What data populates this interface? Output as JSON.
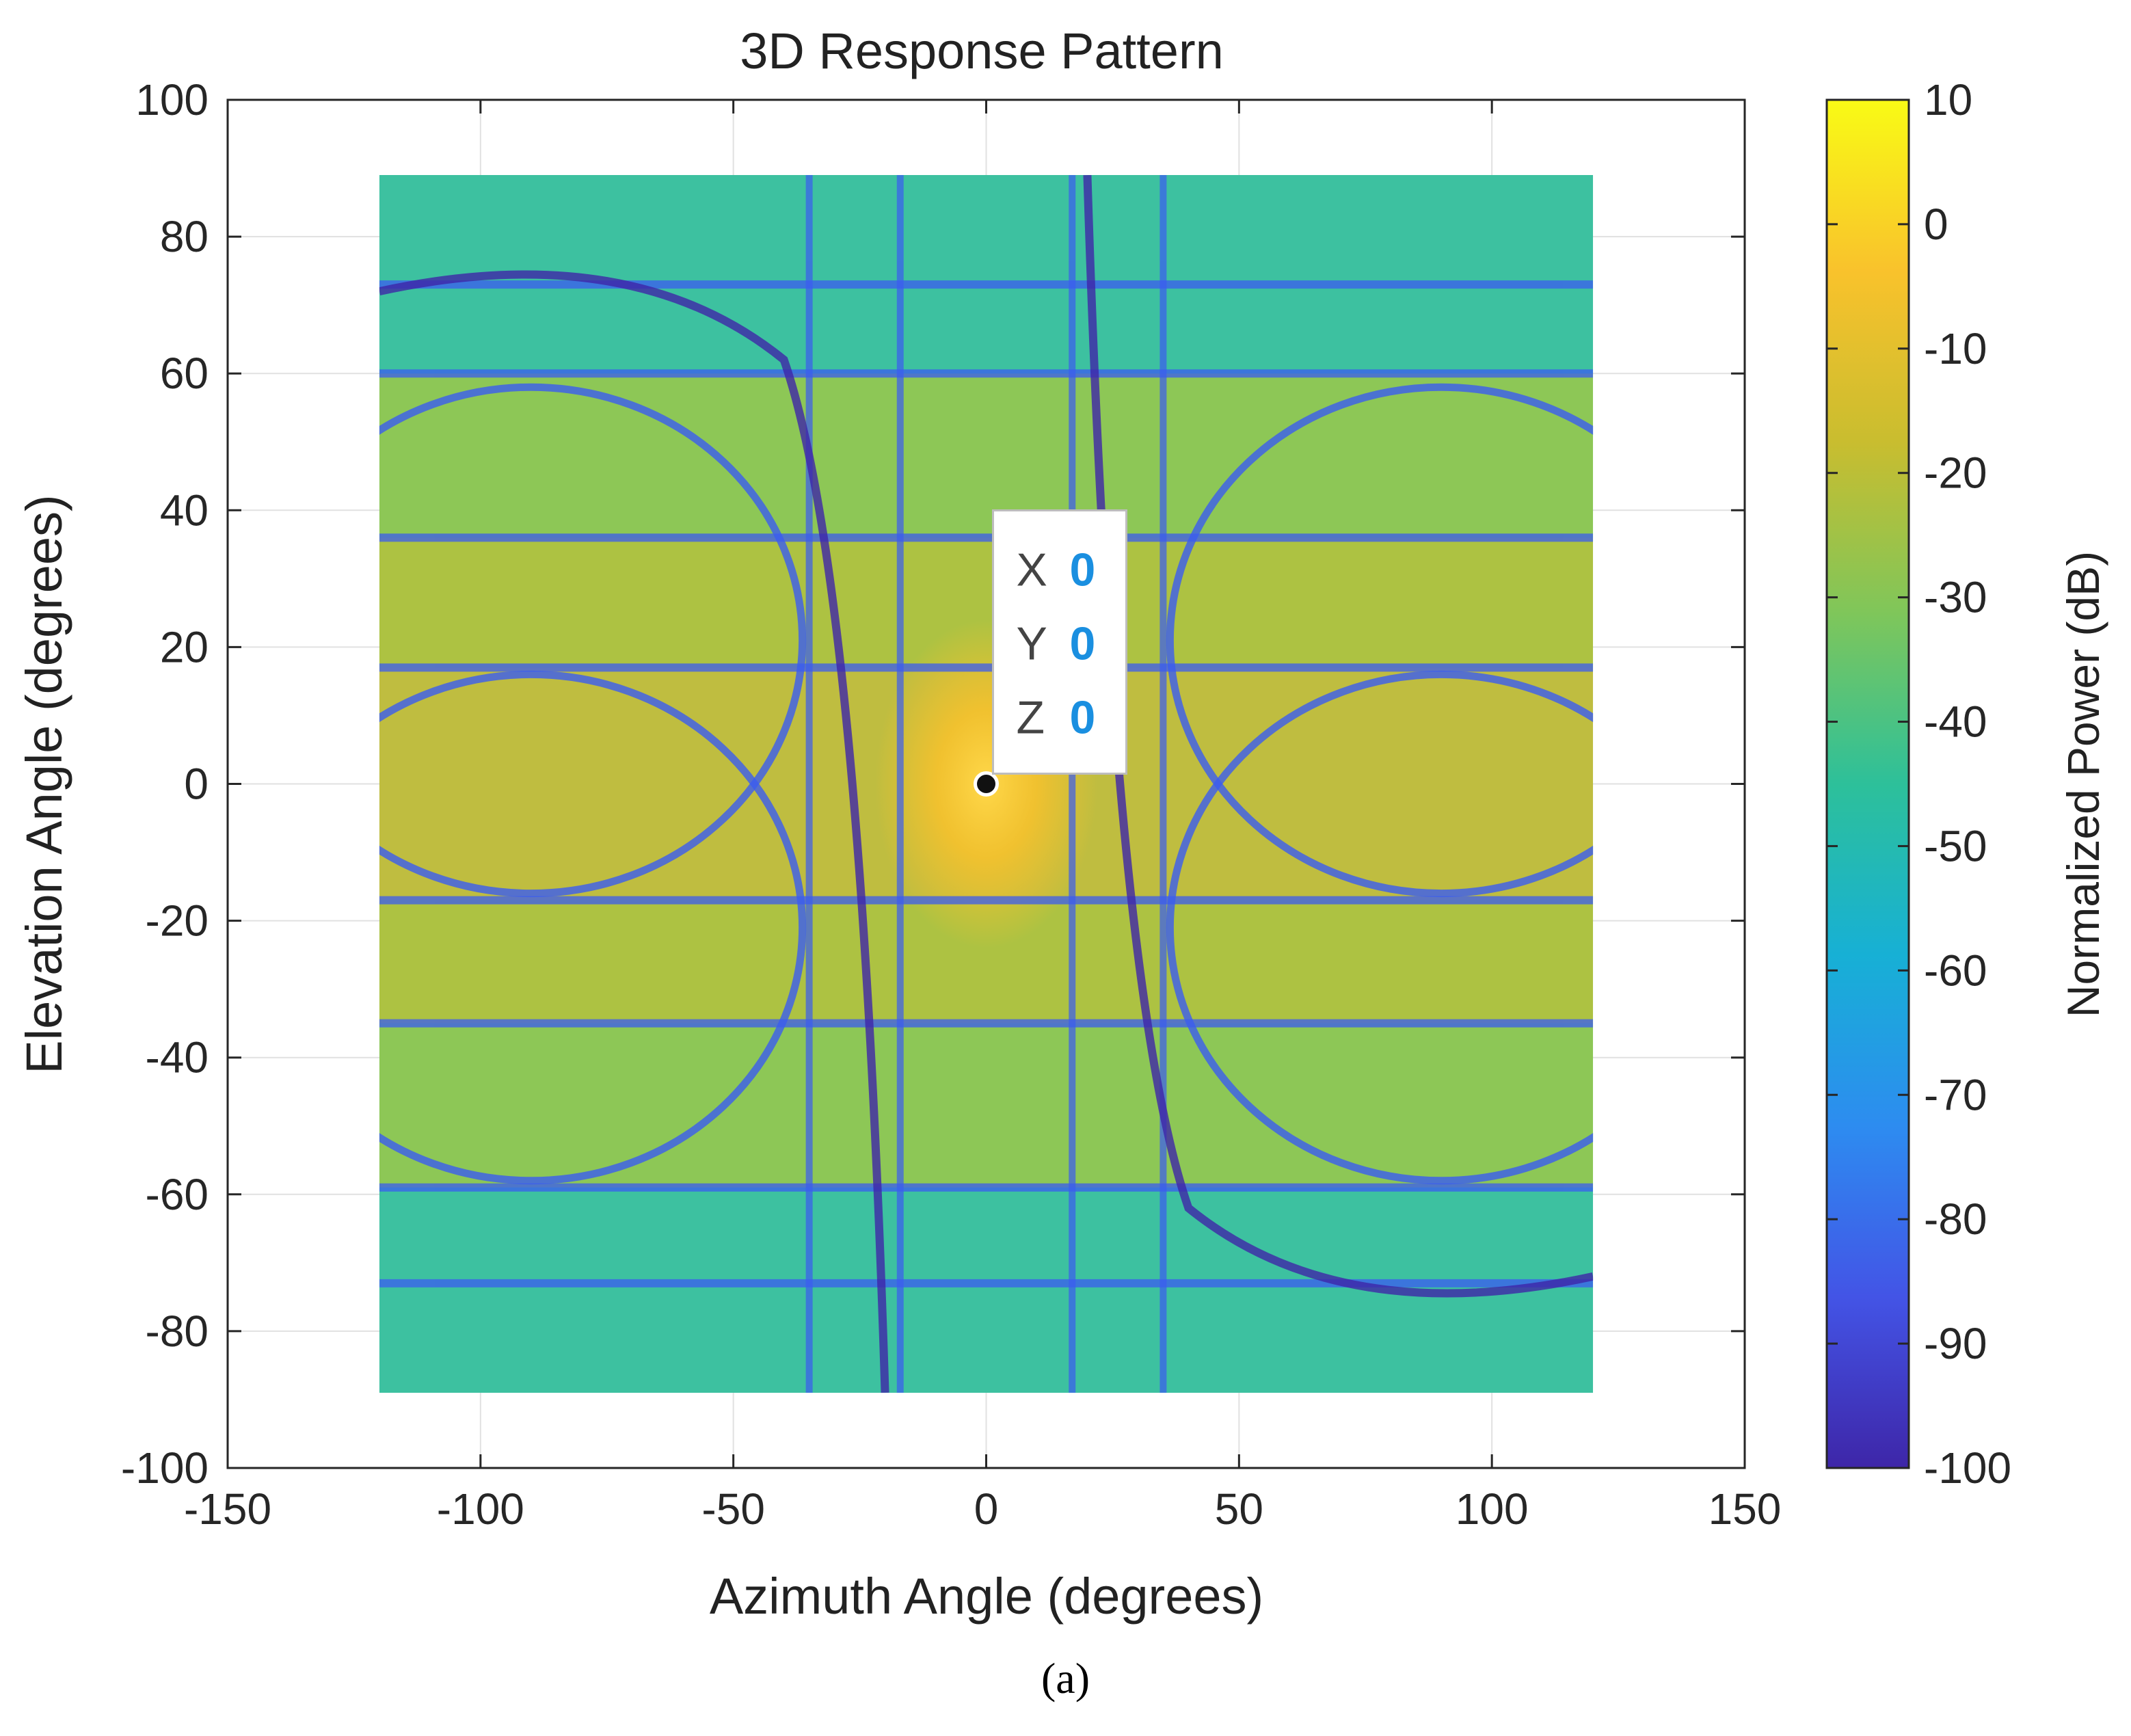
{
  "chart_data": {
    "type": "heatmap",
    "title": "3D Response Pattern",
    "xlabel": "Azimuth Angle (degrees)",
    "ylabel": "Elevation Angle (degrees)",
    "xlim": [
      -150,
      150
    ],
    "ylim": [
      -100,
      100
    ],
    "xticks": [
      -150,
      -100,
      -50,
      0,
      50,
      100,
      150
    ],
    "yticks": [
      -100,
      -80,
      -60,
      -40,
      -20,
      0,
      20,
      40,
      60,
      80,
      100
    ],
    "data_extent": {
      "azimuth": [
        -120,
        120
      ],
      "elevation": [
        -89,
        89
      ]
    },
    "grid": true,
    "colorbar": {
      "label": "Normalized Power (dB)",
      "range": [
        -100,
        10
      ],
      "ticks": [
        10,
        0,
        -10,
        -20,
        -30,
        -40,
        -50,
        -60,
        -70,
        -80,
        -90,
        -100
      ],
      "colormap": "parula",
      "color_stops": [
        "#3e26a8",
        "#4354e6",
        "#2d8cf0",
        "#17b0d5",
        "#2dc09a",
        "#7fc65a",
        "#c9bd2f",
        "#f9c22c",
        "#f9fb15"
      ]
    },
    "peak": {
      "azimuth": 0,
      "elevation": 0,
      "value_db": 10
    },
    "nulls": {
      "elevation_lines": [
        73,
        60,
        36,
        17,
        -17,
        -35,
        -59,
        -73
      ],
      "azimuth_lines": [
        -35,
        -17,
        17,
        35
      ],
      "rings": [
        {
          "center_az": -90,
          "center_el": 21,
          "radius": 37
        },
        {
          "center_az": 90,
          "center_el": -21,
          "radius": 37
        },
        {
          "center_az": -90,
          "center_el": -21,
          "radius": 37
        },
        {
          "center_az": 90,
          "center_el": 21,
          "radius": 37
        }
      ]
    },
    "datatip": {
      "x_label": "X",
      "x_value": "0",
      "y_label": "Y",
      "y_value": "0",
      "z_label": "Z",
      "z_value": "0",
      "point_az": 0,
      "point_el": 0
    }
  },
  "caption": "(a)"
}
